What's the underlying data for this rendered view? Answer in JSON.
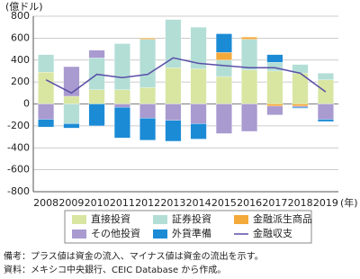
{
  "chart_data": {
    "type": "bar",
    "stacked": true,
    "y_label": "(億ドル)",
    "x_label": "(年)",
    "categories": [
      "2008",
      "2009",
      "2010",
      "2011",
      "2012",
      "2013",
      "2014",
      "2015",
      "2016",
      "2017",
      "2018",
      "2019"
    ],
    "series": [
      {
        "name": "直接投資",
        "color": "#d8e6a2",
        "values": [
          290,
          70,
          130,
          130,
          150,
          330,
          320,
          250,
          310,
          300,
          280,
          220
        ]
      },
      {
        "name": "証券投資",
        "color": "#b3ded6",
        "values": [
          160,
          -180,
          290,
          420,
          440,
          440,
          380,
          150,
          280,
          80,
          80,
          60
        ]
      },
      {
        "name": "金融派生商品",
        "color": "#f4a93b",
        "values": [
          0,
          0,
          0,
          0,
          10,
          0,
          0,
          70,
          20,
          -20,
          -20,
          0
        ]
      },
      {
        "name": "その他投資",
        "color": "#a99ad0",
        "values": [
          -140,
          270,
          70,
          -30,
          -130,
          -150,
          -180,
          -270,
          -250,
          -80,
          -10,
          -140
        ]
      },
      {
        "name": "外貨準備",
        "color": "#1b8bd6",
        "values": [
          -70,
          -40,
          -200,
          -280,
          -200,
          -190,
          -140,
          170,
          0,
          70,
          -10,
          -20
        ]
      },
      {
        "name": "金融収支",
        "type": "line",
        "color": "#5a4fa8",
        "values": [
          220,
          100,
          270,
          240,
          270,
          420,
          370,
          350,
          330,
          330,
          280,
          110
        ]
      }
    ],
    "ylim": [
      -800,
      800
    ],
    "yticks": [
      -800,
      -600,
      -400,
      -200,
      0,
      200,
      400,
      600,
      800
    ],
    "grid": true,
    "notes": [
      "備考：プラス値は資金の流入、マイナス値は資金の流出を示す。",
      "資料：メキシコ中央銀行、CEIC Database から作成。"
    ]
  }
}
